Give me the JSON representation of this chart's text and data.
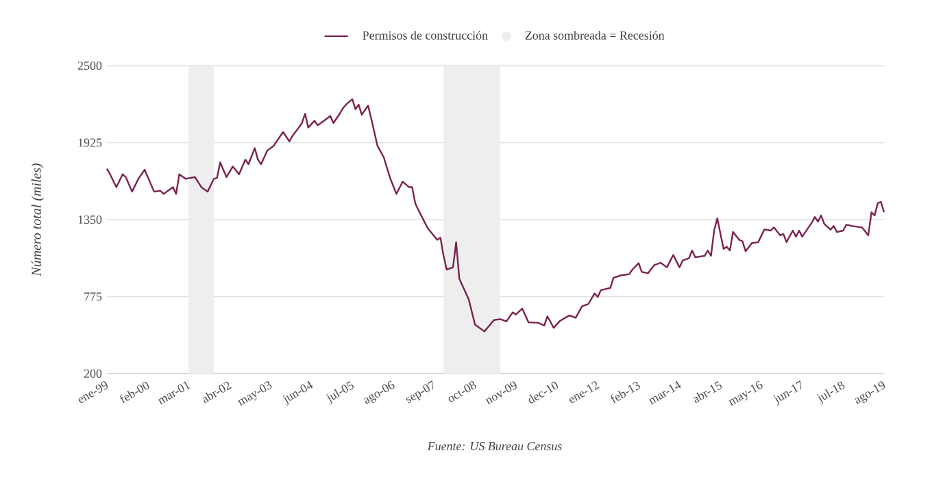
{
  "chart_data": {
    "type": "line",
    "ylabel": "Número total (miles)",
    "annotations": [
      "Fuente: US Bureau Census"
    ],
    "legend": "top",
    "grid": "y",
    "marker": "none",
    "line_style": "solid",
    "xlim": [
      "1999-01",
      "2019-08"
    ],
    "xticks": [
      {
        "value": "1999-01",
        "label": "ene-99"
      },
      {
        "value": "2000-02",
        "label": "feb-00"
      },
      {
        "value": "2001-03",
        "label": "mar-01"
      },
      {
        "value": "2002-04",
        "label": "abr-02"
      },
      {
        "value": "2003-05",
        "label": "may-03"
      },
      {
        "value": "2004-06",
        "label": "jun-04"
      },
      {
        "value": "2005-07",
        "label": "jul-05"
      },
      {
        "value": "2006-08",
        "label": "ago-06"
      },
      {
        "value": "2007-09",
        "label": "sep-07"
      },
      {
        "value": "2008-10",
        "label": "oct-08"
      },
      {
        "value": "2009-11",
        "label": "nov-09"
      },
      {
        "value": "2010-12",
        "label": "dec-10"
      },
      {
        "value": "2012-01",
        "label": "ene-12"
      },
      {
        "value": "2013-02",
        "label": "feb-13"
      },
      {
        "value": "2014-03",
        "label": "mar-14"
      },
      {
        "value": "2015-04",
        "label": "abr-15"
      },
      {
        "value": "2016-05",
        "label": "may-16"
      },
      {
        "value": "2017-06",
        "label": "jun-17"
      },
      {
        "value": "2018-07",
        "label": "jul-18"
      },
      {
        "value": "2019-08",
        "label": "ago-19"
      }
    ],
    "ylim": [
      200,
      2500
    ],
    "yticks": [
      200,
      775,
      1350,
      1925,
      2500
    ],
    "bands": [
      {
        "axis": "x",
        "from": "2001-03",
        "to": "2001-11",
        "color": "#eeeeee",
        "label": "Zona sombreada = Recesión"
      },
      {
        "axis": "x",
        "from": "2007-12",
        "to": "2009-06",
        "color": "#eeeeee"
      }
    ],
    "series": [
      {
        "name": "Permisos de construcción",
        "color": "#7b2150",
        "x": [
          "1999-01",
          "1999-02",
          "1999-04",
          "1999-06",
          "1999-07",
          "1999-09",
          "1999-11",
          "2000-01",
          "2000-04",
          "2000-06",
          "2000-07",
          "2000-10",
          "2000-11",
          "2000-12",
          "2001-02",
          "2001-05",
          "2001-07",
          "2001-09",
          "2001-11",
          "2001-12",
          "2002-01",
          "2002-03",
          "2002-05",
          "2002-07",
          "2002-09",
          "2002-10",
          "2002-12",
          "2003-01",
          "2003-02",
          "2003-04",
          "2003-06",
          "2003-08",
          "2003-09",
          "2003-11",
          "2003-12",
          "2004-02",
          "2004-03",
          "2004-04",
          "2004-05",
          "2004-07",
          "2004-08",
          "2004-10",
          "2004-12",
          "2005-01",
          "2005-03",
          "2005-04",
          "2005-05",
          "2005-07",
          "2005-08",
          "2005-09",
          "2005-10",
          "2005-12",
          "2006-01",
          "2006-03",
          "2006-05",
          "2006-07",
          "2006-09",
          "2006-11",
          "2007-01",
          "2007-02",
          "2007-03",
          "2007-04",
          "2007-07",
          "2007-10",
          "2007-11",
          "2007-12",
          "2008-01",
          "2008-03",
          "2008-04",
          "2008-05",
          "2008-08",
          "2008-10",
          "2008-11",
          "2009-01",
          "2009-04",
          "2009-06",
          "2009-08",
          "2009-10",
          "2009-11",
          "2010-01",
          "2010-03",
          "2010-06",
          "2010-08",
          "2010-09",
          "2010-11",
          "2011-01",
          "2011-04",
          "2011-06",
          "2011-08",
          "2011-10",
          "2011-12",
          "2012-01",
          "2012-02",
          "2012-05",
          "2012-06",
          "2012-08",
          "2012-11",
          "2012-12",
          "2013-02",
          "2013-03",
          "2013-05",
          "2013-07",
          "2013-09",
          "2013-11",
          "2014-01",
          "2014-03",
          "2014-04",
          "2014-06",
          "2014-07",
          "2014-08",
          "2014-11",
          "2014-12",
          "2015-01",
          "2015-02",
          "2015-03",
          "2015-05",
          "2015-06",
          "2015-07",
          "2015-08",
          "2015-10",
          "2015-11",
          "2015-12",
          "2016-02",
          "2016-04",
          "2016-06",
          "2016-08",
          "2016-09",
          "2016-11",
          "2016-12",
          "2017-01",
          "2017-03",
          "2017-04",
          "2017-05",
          "2017-06",
          "2017-08",
          "2017-09",
          "2017-10",
          "2017-11",
          "2017-12",
          "2018-01",
          "2018-03",
          "2018-04",
          "2018-05",
          "2018-07",
          "2018-08",
          "2018-10",
          "2019-01",
          "2019-03",
          "2019-04",
          "2019-05",
          "2019-06",
          "2019-07",
          "2019-08"
        ],
        "values": [
          1730,
          1689,
          1593,
          1689,
          1668,
          1559,
          1655,
          1723,
          1559,
          1566,
          1542,
          1593,
          1542,
          1689,
          1655,
          1668,
          1593,
          1559,
          1655,
          1662,
          1778,
          1668,
          1747,
          1689,
          1798,
          1764,
          1884,
          1798,
          1764,
          1867,
          1901,
          1970,
          2004,
          1935,
          1976,
          2038,
          2072,
          2141,
          2038,
          2089,
          2055,
          2089,
          2124,
          2072,
          2141,
          2182,
          2209,
          2250,
          2175,
          2209,
          2134,
          2202,
          2106,
          1901,
          1815,
          1662,
          1542,
          1634,
          1593,
          1593,
          1473,
          1422,
          1285,
          1199,
          1216,
          1080,
          977,
          994,
          1182,
          909,
          755,
          566,
          549,
          515,
          600,
          607,
          590,
          658,
          641,
          686,
          583,
          580,
          559,
          628,
          542,
          594,
          635,
          617,
          703,
          720,
          799,
          772,
          823,
          840,
          915,
          932,
          943,
          977,
          1025,
          960,
          950,
          1011,
          1028,
          994,
          1086,
          994,
          1045,
          1062,
          1120,
          1069,
          1080,
          1120,
          1080,
          1268,
          1360,
          1131,
          1148,
          1120,
          1258,
          1199,
          1189,
          1114,
          1175,
          1182,
          1278,
          1268,
          1292,
          1233,
          1244,
          1182,
          1268,
          1223,
          1268,
          1223,
          1292,
          1326,
          1370,
          1336,
          1381,
          1319,
          1275,
          1302,
          1258,
          1268,
          1312,
          1302,
          1292,
          1233,
          1405,
          1381,
          1473,
          1483,
          1405
        ]
      }
    ]
  }
}
